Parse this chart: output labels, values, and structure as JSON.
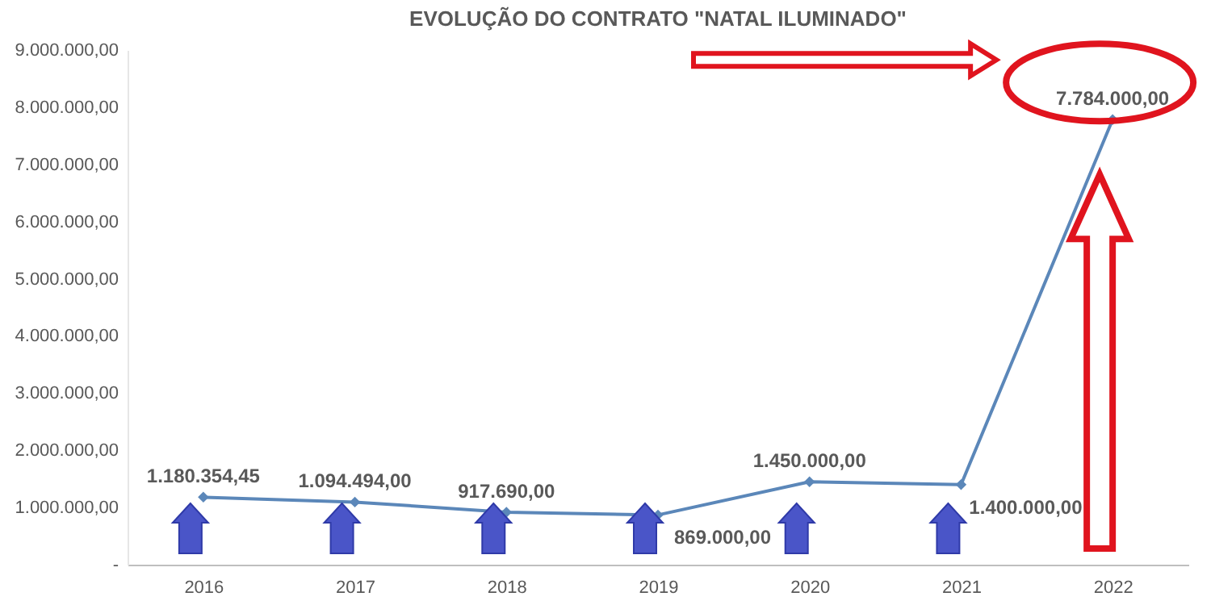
{
  "chart_data": {
    "type": "line",
    "title": "EVOLUÇÃO DO CONTRATO \"NATAL ILUMINADO\"",
    "categories": [
      "2016",
      "2017",
      "2018",
      "2019",
      "2020",
      "2021",
      "2022"
    ],
    "values": [
      1180354.45,
      1094494,
      917690,
      869000,
      1450000,
      1400000,
      7784000
    ],
    "value_labels": [
      "1.180.354,45",
      "1.094.494,00",
      "917.690,00",
      "869.000,00",
      "1.450.000,00",
      "1.400.000,00",
      "7.784.000,00"
    ],
    "color": "#5b87b9",
    "marker": "diamond",
    "grid": false,
    "ylim": [
      0,
      9000000
    ],
    "yticks": [
      {
        "value": 0,
        "label": "-"
      },
      {
        "value": 1000000,
        "label": "1.000.000,00"
      },
      {
        "value": 2000000,
        "label": "2.000.000,00"
      },
      {
        "value": 3000000,
        "label": "3.000.000,00"
      },
      {
        "value": 4000000,
        "label": "4.000.000,00"
      },
      {
        "value": 5000000,
        "label": "5.000.000,00"
      },
      {
        "value": 6000000,
        "label": "6.000.000,00"
      },
      {
        "value": 7000000,
        "label": "7.000.000,00"
      },
      {
        "value": 8000000,
        "label": "8.000.000,00"
      },
      {
        "value": 9000000,
        "label": "9.000.000,00"
      }
    ]
  }
}
